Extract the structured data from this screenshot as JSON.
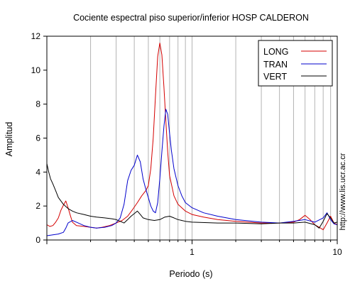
{
  "chart_data": {
    "type": "line",
    "title": "Cociente espectral piso superior/inferior  HOSP CALDERON",
    "xlabel": "Periodo (s)",
    "ylabel": "Amplitud",
    "x_scale": "log",
    "xlim": [
      0.1,
      10
    ],
    "ylim": [
      0,
      12
    ],
    "x_tick_labels": [
      {
        "value": 1,
        "label": "1"
      },
      {
        "value": 10,
        "label": "10"
      }
    ],
    "y_ticks": [
      0,
      2,
      4,
      6,
      8,
      10,
      12
    ],
    "grid": "vertical-log-minor",
    "legend_position": "top-right",
    "watermark": "http://www.lis.ucr.ac.cr",
    "series": [
      {
        "name": "LONG",
        "color": "#d40000",
        "points": [
          [
            0.1,
            0.9
          ],
          [
            0.105,
            0.8
          ],
          [
            0.11,
            0.85
          ],
          [
            0.115,
            1.05
          ],
          [
            0.12,
            1.3
          ],
          [
            0.125,
            1.75
          ],
          [
            0.13,
            2.05
          ],
          [
            0.135,
            2.3
          ],
          [
            0.14,
            1.9
          ],
          [
            0.145,
            1.45
          ],
          [
            0.15,
            1.05
          ],
          [
            0.16,
            0.85
          ],
          [
            0.18,
            0.8
          ],
          [
            0.2,
            0.75
          ],
          [
            0.22,
            0.7
          ],
          [
            0.24,
            0.75
          ],
          [
            0.27,
            0.85
          ],
          [
            0.3,
            1.0
          ],
          [
            0.33,
            1.15
          ],
          [
            0.36,
            1.4
          ],
          [
            0.39,
            1.8
          ],
          [
            0.42,
            2.2
          ],
          [
            0.45,
            2.6
          ],
          [
            0.48,
            2.9
          ],
          [
            0.5,
            3.2
          ],
          [
            0.52,
            4.2
          ],
          [
            0.54,
            6.0
          ],
          [
            0.56,
            8.5
          ],
          [
            0.58,
            10.8
          ],
          [
            0.6,
            11.6
          ],
          [
            0.62,
            10.9
          ],
          [
            0.64,
            9.0
          ],
          [
            0.66,
            7.0
          ],
          [
            0.68,
            5.2
          ],
          [
            0.7,
            3.8
          ],
          [
            0.75,
            2.6
          ],
          [
            0.8,
            2.1
          ],
          [
            0.9,
            1.7
          ],
          [
            1.0,
            1.5
          ],
          [
            1.2,
            1.35
          ],
          [
            1.5,
            1.2
          ],
          [
            2.0,
            1.1
          ],
          [
            3.0,
            1.0
          ],
          [
            4.0,
            1.0
          ],
          [
            5.0,
            1.05
          ],
          [
            5.5,
            1.2
          ],
          [
            6.0,
            1.45
          ],
          [
            6.5,
            1.2
          ],
          [
            7.0,
            0.9
          ],
          [
            7.5,
            0.75
          ],
          [
            8.0,
            0.6
          ],
          [
            8.5,
            1.0
          ],
          [
            9.0,
            1.4
          ],
          [
            9.5,
            1.0
          ],
          [
            10.0,
            0.9
          ]
        ]
      },
      {
        "name": "TRAN",
        "color": "#0000cc",
        "points": [
          [
            0.1,
            0.25
          ],
          [
            0.11,
            0.3
          ],
          [
            0.12,
            0.35
          ],
          [
            0.13,
            0.45
          ],
          [
            0.135,
            0.7
          ],
          [
            0.14,
            1.0
          ],
          [
            0.15,
            1.15
          ],
          [
            0.16,
            1.05
          ],
          [
            0.18,
            0.85
          ],
          [
            0.2,
            0.75
          ],
          [
            0.22,
            0.7
          ],
          [
            0.25,
            0.75
          ],
          [
            0.28,
            0.85
          ],
          [
            0.3,
            1.0
          ],
          [
            0.32,
            1.3
          ],
          [
            0.34,
            2.1
          ],
          [
            0.36,
            3.5
          ],
          [
            0.38,
            4.1
          ],
          [
            0.4,
            4.4
          ],
          [
            0.42,
            5.0
          ],
          [
            0.44,
            4.6
          ],
          [
            0.46,
            3.6
          ],
          [
            0.48,
            3.0
          ],
          [
            0.5,
            2.5
          ],
          [
            0.52,
            2.0
          ],
          [
            0.54,
            1.7
          ],
          [
            0.56,
            1.6
          ],
          [
            0.58,
            2.2
          ],
          [
            0.6,
            3.6
          ],
          [
            0.62,
            5.2
          ],
          [
            0.64,
            6.7
          ],
          [
            0.66,
            7.7
          ],
          [
            0.68,
            7.4
          ],
          [
            0.7,
            6.3
          ],
          [
            0.72,
            5.3
          ],
          [
            0.75,
            4.2
          ],
          [
            0.8,
            3.2
          ],
          [
            0.85,
            2.6
          ],
          [
            0.9,
            2.2
          ],
          [
            1.0,
            1.9
          ],
          [
            1.2,
            1.6
          ],
          [
            1.5,
            1.4
          ],
          [
            2.0,
            1.2
          ],
          [
            3.0,
            1.05
          ],
          [
            4.0,
            1.0
          ],
          [
            5.0,
            1.1
          ],
          [
            6.0,
            1.2
          ],
          [
            7.0,
            1.05
          ],
          [
            8.0,
            1.3
          ],
          [
            8.5,
            1.6
          ],
          [
            9.0,
            1.2
          ],
          [
            9.5,
            0.95
          ],
          [
            10.0,
            0.9
          ]
        ]
      },
      {
        "name": "VERT",
        "color": "#000000",
        "points": [
          [
            0.1,
            4.5
          ],
          [
            0.103,
            4.0
          ],
          [
            0.106,
            3.6
          ],
          [
            0.11,
            3.3
          ],
          [
            0.115,
            2.9
          ],
          [
            0.12,
            2.5
          ],
          [
            0.13,
            2.1
          ],
          [
            0.14,
            1.85
          ],
          [
            0.15,
            1.7
          ],
          [
            0.16,
            1.6
          ],
          [
            0.18,
            1.5
          ],
          [
            0.2,
            1.4
          ],
          [
            0.22,
            1.35
          ],
          [
            0.25,
            1.3
          ],
          [
            0.28,
            1.25
          ],
          [
            0.3,
            1.2
          ],
          [
            0.32,
            1.1
          ],
          [
            0.34,
            1.0
          ],
          [
            0.36,
            1.2
          ],
          [
            0.38,
            1.4
          ],
          [
            0.4,
            1.55
          ],
          [
            0.42,
            1.7
          ],
          [
            0.44,
            1.5
          ],
          [
            0.46,
            1.3
          ],
          [
            0.5,
            1.2
          ],
          [
            0.55,
            1.15
          ],
          [
            0.6,
            1.2
          ],
          [
            0.65,
            1.35
          ],
          [
            0.7,
            1.4
          ],
          [
            0.75,
            1.3
          ],
          [
            0.8,
            1.2
          ],
          [
            0.9,
            1.1
          ],
          [
            1.0,
            1.05
          ],
          [
            1.5,
            1.0
          ],
          [
            2.0,
            1.0
          ],
          [
            3.0,
            0.95
          ],
          [
            4.0,
            1.0
          ],
          [
            5.0,
            1.0
          ],
          [
            6.0,
            1.05
          ],
          [
            7.0,
            0.9
          ],
          [
            7.5,
            0.7
          ],
          [
            8.0,
            1.1
          ],
          [
            8.5,
            1.55
          ],
          [
            9.0,
            1.3
          ],
          [
            9.5,
            1.0
          ],
          [
            10.0,
            1.05
          ]
        ]
      }
    ]
  }
}
